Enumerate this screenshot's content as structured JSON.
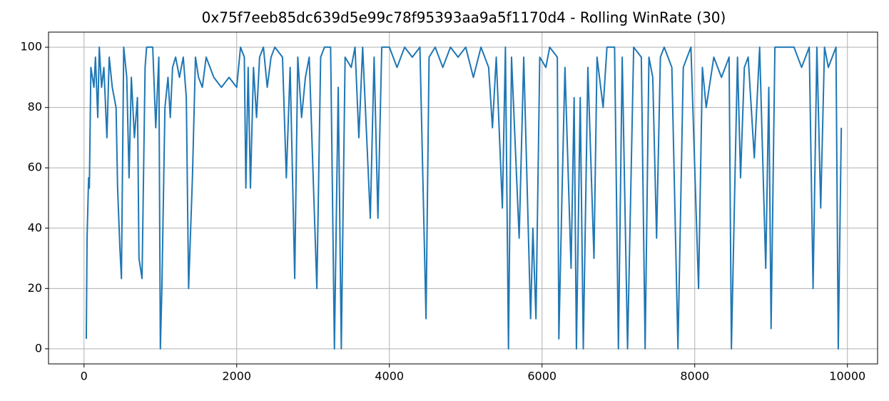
{
  "chart_data": {
    "type": "line",
    "title": "0x75f7eeb85dc639d5e99c78f95393aa9a5f1170d4 - Rolling WinRate (30)",
    "x": [
      30,
      40,
      60,
      70,
      90,
      130,
      150,
      180,
      200,
      230,
      260,
      300,
      330,
      370,
      420,
      440,
      470,
      490,
      520,
      560,
      590,
      620,
      660,
      700,
      720,
      760,
      800,
      820,
      900,
      940,
      980,
      1000,
      1020,
      1060,
      1100,
      1130,
      1160,
      1200,
      1250,
      1300,
      1340,
      1370,
      1420,
      1460,
      1500,
      1550,
      1600,
      1700,
      1800,
      1900,
      2000,
      2050,
      2100,
      2120,
      2150,
      2180,
      2220,
      2260,
      2300,
      2350,
      2400,
      2450,
      2500,
      2600,
      2650,
      2700,
      2760,
      2800,
      2850,
      2900,
      2950,
      3050,
      3100,
      3150,
      3230,
      3280,
      3330,
      3370,
      3420,
      3500,
      3550,
      3600,
      3650,
      3750,
      3800,
      3850,
      3900,
      4000,
      4100,
      4200,
      4300,
      4400,
      4480,
      4520,
      4600,
      4700,
      4800,
      4900,
      5000,
      5100,
      5200,
      5300,
      5350,
      5400,
      5480,
      5520,
      5560,
      5600,
      5700,
      5760,
      5850,
      5880,
      5920,
      5970,
      6050,
      6100,
      6200,
      6220,
      6260,
      6300,
      6380,
      6420,
      6450,
      6500,
      6540,
      6600,
      6680,
      6720,
      6800,
      6850,
      6950,
      7000,
      7050,
      7120,
      7200,
      7300,
      7350,
      7400,
      7450,
      7500,
      7550,
      7600,
      7700,
      7780,
      7850,
      7950,
      8050,
      8100,
      8150,
      8250,
      8350,
      8450,
      8480,
      8560,
      8600,
      8650,
      8700,
      8780,
      8850,
      8930,
      8970,
      9000,
      9050,
      9200,
      9300,
      9400,
      9500,
      9550,
      9600,
      9650,
      9700,
      9750,
      9850,
      9880,
      9920
    ],
    "series": [
      {
        "color": "#1f77b4",
        "values": [
          3.3,
          36.7,
          56.7,
          53.3,
          93.3,
          86.7,
          96.7,
          76.7,
          100,
          86.7,
          93.3,
          70,
          96.7,
          86.7,
          80,
          53.3,
          33.3,
          23.3,
          100,
          90,
          56.7,
          90,
          70,
          83.3,
          30,
          23.3,
          93.3,
          100,
          100,
          73.3,
          96.7,
          0,
          20,
          80,
          90,
          76.7,
          93.3,
          96.7,
          90,
          96.7,
          83.3,
          20,
          56.7,
          96.7,
          90,
          86.7,
          96.7,
          90,
          86.7,
          90,
          86.7,
          100,
          96.7,
          53.3,
          93.3,
          53.3,
          93.3,
          76.7,
          96.7,
          100,
          86.7,
          96.7,
          100,
          96.7,
          56.7,
          93.3,
          23.3,
          96.7,
          76.7,
          90,
          96.7,
          20,
          96.7,
          100,
          100,
          0,
          86.7,
          0,
          96.7,
          93.3,
          100,
          70,
          100,
          43.3,
          96.7,
          43.3,
          100,
          100,
          93.3,
          100,
          96.7,
          100,
          10,
          96.7,
          100,
          93.3,
          100,
          96.7,
          100,
          90,
          100,
          93.3,
          73.3,
          96.7,
          46.7,
          100,
          0,
          96.7,
          36.7,
          96.7,
          10,
          40,
          10,
          96.7,
          93.3,
          100,
          96.7,
          3.3,
          50,
          93.3,
          26.7,
          83.3,
          0,
          83.3,
          0,
          93.3,
          30,
          96.7,
          80,
          100,
          100,
          0,
          96.7,
          0,
          100,
          96.7,
          0,
          96.7,
          90,
          36.7,
          96.7,
          100,
          93.3,
          0,
          93.3,
          100,
          20,
          93.3,
          80,
          96.7,
          90,
          96.7,
          0,
          96.7,
          56.7,
          93.3,
          96.7,
          63.3,
          100,
          26.7,
          86.7,
          6.7,
          100,
          100,
          100,
          93.3,
          100,
          20,
          100,
          46.7,
          100,
          93.3,
          100,
          0,
          73.3
        ]
      }
    ],
    "xlim": [
      -465,
      10395
    ],
    "ylim": [
      -5,
      105
    ],
    "xticks": [
      0,
      2000,
      4000,
      6000,
      8000,
      10000
    ],
    "yticks": [
      0,
      20,
      40,
      60,
      80,
      100
    ],
    "grid": true
  }
}
